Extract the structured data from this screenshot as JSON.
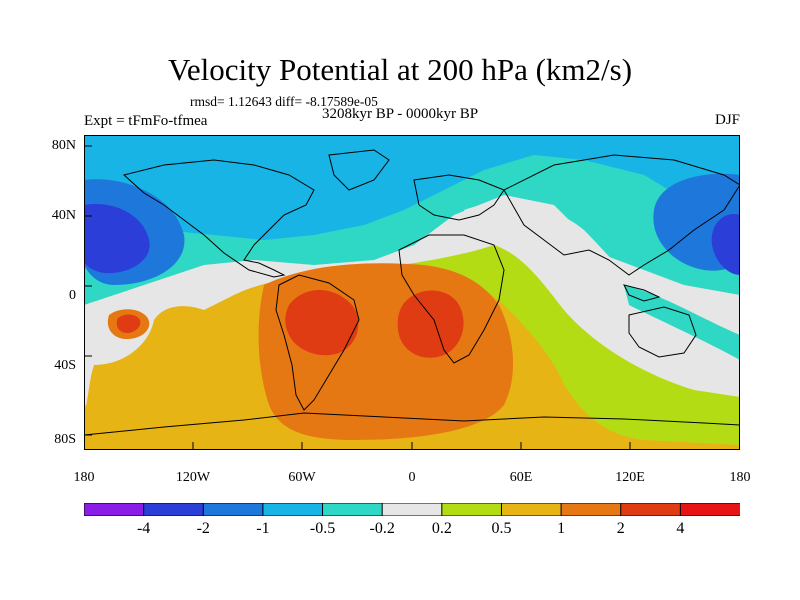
{
  "title": "Velocity Potential at 200 hPa (km2/s)",
  "stats": "rmsd= 1.12643 diff= -8.17589e-05",
  "experiment": "Expt = tFmFo-tfmea",
  "period": "3208kyr BP - 0000kyr BP",
  "season": "DJF",
  "lat_labels": [
    "80N",
    "40N",
    "0",
    "40S",
    "80S"
  ],
  "lon_labels": [
    "180",
    "120W",
    "60W",
    "0",
    "60E",
    "120E",
    "180"
  ],
  "colorbar": {
    "labels": [
      "-4",
      "-2",
      "-1",
      "-0.5",
      "-0.2",
      "0.2",
      "0.5",
      "1",
      "2",
      "4"
    ],
    "colors": [
      "#8a1ee6",
      "#2b3fd8",
      "#1e78dc",
      "#18b4e6",
      "#2ed8c4",
      "#e6e6e6",
      "#b4dc14",
      "#e6b414",
      "#e67814",
      "#e03c14",
      "#e61414"
    ]
  },
  "palette": {
    "ocean_base": "#b4dc14",
    "land_outline": "#000000"
  }
}
